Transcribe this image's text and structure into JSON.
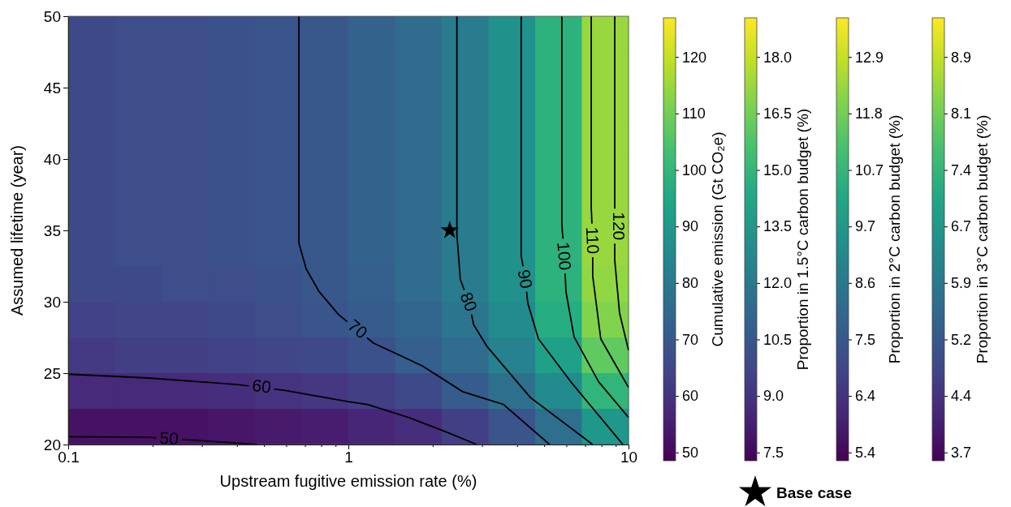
{
  "chart_data": {
    "type": "heatmap",
    "xlabel": "Upstream fugitive emission rate (%)",
    "ylabel": "Assumed lifetime (year)",
    "clabel": "Cumulative emission (Gt CO₂e)",
    "log": "x",
    "legend": "bottom right",
    "xlim": [
      0.1,
      10
    ],
    "xticks": [
      0.1,
      {
        "value": 0.2,
        "label": null
      },
      {
        "value": 0.3,
        "label": null
      },
      {
        "value": 0.4,
        "label": null
      },
      {
        "value": 0.5,
        "label": null
      },
      {
        "value": 0.6,
        "label": null
      },
      {
        "value": 0.7,
        "label": null
      },
      {
        "value": 0.8,
        "label": null
      },
      {
        "value": 0.9,
        "label": null
      },
      1,
      {
        "value": 2,
        "label": null
      },
      {
        "value": 3,
        "label": null
      },
      {
        "value": 4,
        "label": null
      },
      {
        "value": 5,
        "label": null
      },
      {
        "value": 6,
        "label": null
      },
      {
        "value": 7,
        "label": null
      },
      {
        "value": 8,
        "label": null
      },
      {
        "value": 9,
        "label": null
      },
      10
    ],
    "ylim": [
      20,
      50
    ],
    "yticks": [
      20,
      25,
      30,
      35,
      40,
      45,
      50
    ],
    "clim": [
      48.6,
      127
    ],
    "cticks": [
      50,
      60,
      70,
      80,
      90,
      100,
      110,
      120
    ],
    "cells": [
      [
        66,
        67,
        67,
        68,
        69,
        70,
        73,
        76,
        81,
        88,
        99,
        115
      ],
      [
        66,
        67,
        67,
        68,
        69,
        70,
        73,
        76,
        81,
        88,
        99,
        115
      ],
      [
        66,
        67,
        67,
        68,
        69,
        70,
        73,
        76,
        81,
        88,
        99,
        115
      ],
      [
        66,
        67,
        67,
        68,
        69,
        70,
        73,
        76,
        81,
        88,
        99,
        115
      ],
      [
        66,
        67,
        67,
        68,
        69,
        70,
        73,
        76,
        81,
        88,
        99,
        115
      ],
      [
        66,
        67,
        67,
        68,
        69,
        70,
        73,
        76,
        81,
        88,
        99,
        115
      ],
      [
        66,
        67,
        67,
        68,
        69,
        70,
        73,
        76,
        81,
        88,
        99,
        115
      ],
      [
        66,
        66,
        67,
        67,
        68,
        70,
        72,
        76,
        81,
        88,
        99,
        114
      ],
      [
        64,
        65,
        65,
        66,
        67,
        69,
        71,
        74,
        79,
        86,
        97,
        112
      ],
      [
        62,
        63,
        63,
        64,
        65,
        66,
        68,
        72,
        76,
        83,
        93,
        108
      ],
      [
        58,
        58,
        58,
        59,
        60,
        61,
        63,
        66,
        71,
        77,
        86,
        100
      ],
      [
        52,
        52,
        52,
        53,
        54,
        55,
        57,
        59,
        63,
        69,
        77,
        90
      ]
    ],
    "series": [
      {
        "type": "line",
        "color": "#000000",
        "x": [
          0.1,
          0.194,
          0.283,
          0.473
        ],
        "values": [
          20.55,
          20.5,
          20.3,
          20.0
        ]
      },
      {
        "type": "line",
        "color": "#000000",
        "x": [
          0.1,
          0.194,
          0.403,
          0.59,
          1.0,
          1.17,
          1.64,
          2.29,
          2.87
        ],
        "values": [
          24.93,
          24.66,
          24.2,
          23.8,
          23.0,
          22.8,
          21.9,
          20.8,
          20.0
        ]
      },
      {
        "type": "line",
        "color": "#000000",
        "x": [
          0.666,
          0.666,
          0.707,
          0.787,
          0.923,
          1.23,
          1.84,
          2.56,
          3.58,
          5.23
        ],
        "values": [
          50,
          34.1,
          32.3,
          30.7,
          29.1,
          27.1,
          25.5,
          23.7,
          22.8,
          20.0
        ]
      },
      {
        "type": "line",
        "color": "#000000",
        "x": [
          2.44,
          2.44,
          2.51,
          2.69,
          2.8,
          3.13,
          4.46,
          7.45
        ],
        "values": [
          50,
          34.7,
          31.55,
          30.0,
          28.4,
          26.85,
          23.3,
          20.0
        ]
      },
      {
        "type": "line",
        "color": "#000000",
        "x": [
          4.14,
          4.14,
          4.28,
          4.37,
          4.77,
          6.22,
          9.55
        ],
        "values": [
          50,
          33.2,
          31.6,
          29.9,
          27.4,
          24.4,
          20.0
        ]
      },
      {
        "type": "line",
        "color": "#000000",
        "x": [
          5.78,
          5.78,
          5.9,
          5.98,
          6.39,
          7.82,
          10
        ],
        "values": [
          50,
          35.4,
          33.2,
          30.7,
          27.55,
          24.4,
          21.9
        ]
      },
      {
        "type": "line",
        "color": "#000000",
        "x": [
          7.36,
          7.36,
          7.45,
          7.45,
          7.96,
          10
        ],
        "values": [
          50,
          36.6,
          34.3,
          31.8,
          27.4,
          24.0
        ]
      },
      {
        "type": "line",
        "color": "#000000",
        "x": [
          8.93,
          8.93,
          8.93,
          8.93,
          9.29,
          10
        ],
        "values": [
          50,
          37.5,
          35.3,
          32.9,
          29.2,
          26.6
        ]
      },
      {
        "type": "scatter",
        "name": "Base case",
        "color": "#000000",
        "marker": "star",
        "x": [
          2.3
        ],
        "values": [
          35
        ]
      }
    ],
    "annotations": [
      {
        "text": "50",
        "x": 0.229,
        "y": 20.45
      },
      {
        "text": "60",
        "x": 0.49,
        "y": 24.1
      },
      {
        "text": "70",
        "x": 1.08,
        "y": 28.1
      },
      {
        "text": "80",
        "x": 2.69,
        "y": 30.0
      },
      {
        "text": "90",
        "x": 4.28,
        "y": 31.6
      },
      {
        "text": "100",
        "x": 5.9,
        "y": 33.2
      },
      {
        "text": "110",
        "x": 7.45,
        "y": 34.3
      },
      {
        "text": "120",
        "x": 9.23,
        "y": 35.3
      },
      "Proportion in 1.5°C carbon budget (%)",
      "7.5",
      "9.0",
      "10.5",
      "12.0",
      "13.5",
      "15.0",
      "16.5",
      "18.0",
      "Proportion in 2°C carbon budget (%)",
      "5.4",
      "6.4",
      "7.5",
      "8.6",
      "9.7",
      "10.7",
      "11.8",
      "12.9",
      "Proportion in 3°C carbon budget (%)",
      "3.7",
      "4.4",
      "5.2",
      "5.9",
      "6.7",
      "7.4",
      "8.1",
      "8.9"
    ]
  }
}
